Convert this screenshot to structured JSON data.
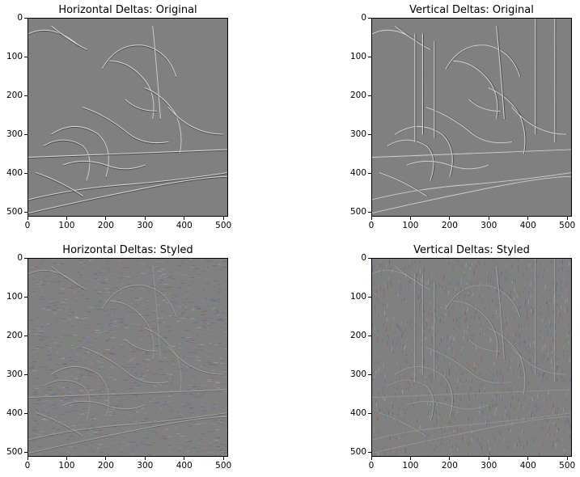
{
  "colors": {
    "gray": "#808080",
    "edge_light": "#e6e6e6",
    "edge_dark": "#3a3a3a"
  },
  "chart_data": [
    {
      "type": "heatmap",
      "title": "Horizontal Deltas: Original",
      "xlim": [
        0,
        512
      ],
      "ylim": [
        512,
        0
      ],
      "x_ticks": [
        0,
        100,
        200,
        300,
        400,
        500
      ],
      "y_ticks": [
        0,
        100,
        200,
        300,
        400,
        500
      ],
      "grid": false,
      "colored_noise": false
    },
    {
      "type": "heatmap",
      "title": "Vertical Deltas: Original",
      "xlim": [
        0,
        512
      ],
      "ylim": [
        512,
        0
      ],
      "x_ticks": [
        0,
        100,
        200,
        300,
        400,
        500
      ],
      "y_ticks": [
        0,
        100,
        200,
        300,
        400,
        500
      ],
      "grid": false,
      "colored_noise": false
    },
    {
      "type": "heatmap",
      "title": "Horizontal Deltas: Styled",
      "xlim": [
        0,
        512
      ],
      "ylim": [
        512,
        0
      ],
      "x_ticks": [
        0,
        100,
        200,
        300,
        400,
        500
      ],
      "y_ticks": [
        0,
        100,
        200,
        300,
        400,
        500
      ],
      "grid": false,
      "colored_noise": true
    },
    {
      "type": "heatmap",
      "title": "Vertical Deltas: Styled",
      "xlim": [
        0,
        512
      ],
      "ylim": [
        512,
        0
      ],
      "x_ticks": [
        0,
        100,
        200,
        300,
        400,
        500
      ],
      "y_ticks": [
        0,
        100,
        200,
        300,
        400,
        500
      ],
      "grid": false,
      "colored_noise": true
    }
  ]
}
